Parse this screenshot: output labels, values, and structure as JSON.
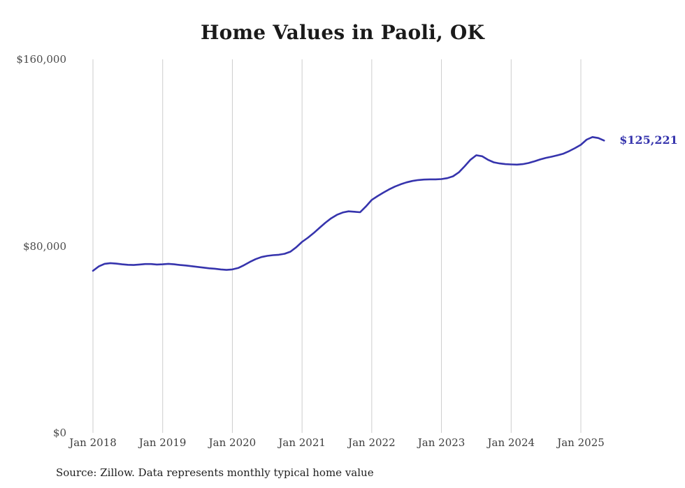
{
  "title": "Home Values in Paoli, OK",
  "end_label": "$125,221",
  "source_note": "Source: Zillow. Data represents monthly typical home value",
  "colors": {
    "line": "#3634ad",
    "end_label": "#3634ad",
    "grid": "#cdcdcd",
    "y_tick_text": "#4a4a4a",
    "x_tick_text": "#3d3d3d",
    "title_text": "#1a1a1a"
  },
  "chart_data": {
    "type": "line",
    "title": "Home Values in Paoli, OK",
    "xlabel": "",
    "ylabel": "",
    "ylim": [
      0,
      160000
    ],
    "y_ticks": [
      0,
      80000,
      160000
    ],
    "y_tick_labels": [
      "$0",
      "$80,000",
      "$160,000"
    ],
    "x_tick_labels": [
      "Jan 2018",
      "Jan 2019",
      "Jan 2020",
      "Jan 2021",
      "Jan 2022",
      "Jan 2023",
      "Jan 2024",
      "Jan 2025"
    ],
    "grid": "vertical-only",
    "legend": "none",
    "annotation": "$125,221",
    "final_value": 125221,
    "x": [
      "2018-01",
      "2018-02",
      "2018-03",
      "2018-04",
      "2018-05",
      "2018-06",
      "2018-07",
      "2018-08",
      "2018-09",
      "2018-10",
      "2018-11",
      "2018-12",
      "2019-01",
      "2019-02",
      "2019-03",
      "2019-04",
      "2019-05",
      "2019-06",
      "2019-07",
      "2019-08",
      "2019-09",
      "2019-10",
      "2019-11",
      "2019-12",
      "2020-01",
      "2020-02",
      "2020-03",
      "2020-04",
      "2020-05",
      "2020-06",
      "2020-07",
      "2020-08",
      "2020-09",
      "2020-10",
      "2020-11",
      "2020-12",
      "2021-01",
      "2021-02",
      "2021-03",
      "2021-04",
      "2021-05",
      "2021-06",
      "2021-07",
      "2021-08",
      "2021-09",
      "2021-10",
      "2021-11",
      "2021-12",
      "2022-01",
      "2022-02",
      "2022-03",
      "2022-04",
      "2022-05",
      "2022-06",
      "2022-07",
      "2022-08",
      "2022-09",
      "2022-10",
      "2022-11",
      "2022-12",
      "2023-01",
      "2023-02",
      "2023-03",
      "2023-04",
      "2023-05",
      "2023-06",
      "2023-07",
      "2023-08",
      "2023-09",
      "2023-10",
      "2023-11",
      "2023-12",
      "2024-01",
      "2024-02",
      "2024-03",
      "2024-04",
      "2024-05",
      "2024-06",
      "2024-07",
      "2024-08",
      "2024-09",
      "2024-10",
      "2024-11",
      "2024-12",
      "2025-01",
      "2025-02",
      "2025-03",
      "2025-04",
      "2025-05"
    ],
    "values": [
      69400,
      71300,
      72400,
      72700,
      72500,
      72200,
      72000,
      71900,
      72100,
      72300,
      72300,
      72100,
      72200,
      72400,
      72200,
      71900,
      71700,
      71400,
      71100,
      70800,
      70500,
      70300,
      70000,
      69800,
      70000,
      70600,
      71800,
      73200,
      74400,
      75300,
      75800,
      76100,
      76300,
      76700,
      77600,
      79500,
      81800,
      83600,
      85600,
      87800,
      90000,
      91900,
      93400,
      94400,
      94900,
      94700,
      94500,
      97000,
      99800,
      101400,
      102900,
      104300,
      105500,
      106500,
      107300,
      107900,
      108300,
      108500,
      108600,
      108600,
      108700,
      109100,
      109900,
      111600,
      114200,
      117000,
      118900,
      118500,
      117000,
      115900,
      115400,
      115100,
      115000,
      114900,
      115100,
      115600,
      116300,
      117100,
      117800,
      118300,
      118900,
      119600,
      120700,
      122000,
      123400,
      125600,
      126700,
      126300,
      125221
    ]
  }
}
